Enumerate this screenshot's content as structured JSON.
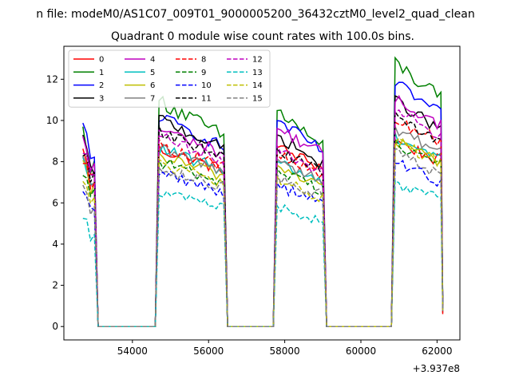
{
  "chart_data": {
    "type": "line",
    "suptitle": "n file: modeM0/AS1C07_009T01_9000005200_36432cztM0_level2_quad_clean",
    "title": "Quadrant 0 module wise count rates with 100.0s bins.",
    "xlabel": "",
    "ylabel": "",
    "x_offset_label": "+3.937e8",
    "xlim": [
      52200,
      62600
    ],
    "ylim": [
      -0.65,
      13.6
    ],
    "xticks": [
      54000,
      56000,
      58000,
      60000,
      62000
    ],
    "xtick_labels": [
      "54000",
      "56000",
      "58000",
      "60000",
      "62000"
    ],
    "yticks": [
      0,
      2,
      4,
      6,
      8,
      10,
      12
    ],
    "ytick_labels": [
      "0",
      "2",
      "4",
      "6",
      "8",
      "10",
      "12"
    ],
    "grid": false,
    "legend_placement": "top-left",
    "legend_columns": 4,
    "segments": [
      {
        "start": 52700,
        "end": 53000,
        "drop_end": 53100
      },
      {
        "rise_start": 54600,
        "start": 54700,
        "end": 56400,
        "drop_end": 56500
      },
      {
        "rise_start": 57700,
        "start": 57800,
        "end": 59000,
        "drop_end": 59100
      },
      {
        "rise_start": 60800,
        "start": 60900,
        "end": 62100,
        "drop_end": 62150
      }
    ],
    "series": [
      {
        "name": "0",
        "color": "#ff0000",
        "dash": "solid",
        "levels": [
          8.5,
          8.6,
          8.7,
          9.0
        ],
        "decay": 1.0,
        "noise": 0.3
      },
      {
        "name": "1",
        "color": "#008000",
        "dash": "solid",
        "levels": [
          9.5,
          11.0,
          10.5,
          12.8
        ],
        "decay": 1.8,
        "noise": 0.4
      },
      {
        "name": "2",
        "color": "#0000ff",
        "dash": "solid",
        "levels": [
          9.7,
          10.2,
          10.0,
          11.8
        ],
        "decay": 1.5,
        "noise": 0.3
      },
      {
        "name": "3",
        "color": "#000000",
        "dash": "solid",
        "levels": [
          9.1,
          10.1,
          9.3,
          11.0
        ],
        "decay": 1.5,
        "noise": 0.3
      },
      {
        "name": "4",
        "color": "#bf00bf",
        "dash": "solid",
        "levels": [
          9.0,
          9.6,
          9.6,
          11.0
        ],
        "decay": 1.2,
        "noise": 0.3
      },
      {
        "name": "5",
        "color": "#00bfbf",
        "dash": "solid",
        "levels": [
          8.0,
          8.6,
          8.0,
          9.2
        ],
        "decay": 1.0,
        "noise": 0.3
      },
      {
        "name": "6",
        "color": "#bfbf00",
        "dash": "solid",
        "levels": [
          7.8,
          8.3,
          7.8,
          9.0
        ],
        "decay": 1.0,
        "noise": 0.3
      },
      {
        "name": "7",
        "color": "#808080",
        "dash": "solid",
        "levels": [
          8.0,
          8.6,
          8.1,
          9.5
        ],
        "decay": 1.0,
        "noise": 0.3
      },
      {
        "name": "8",
        "color": "#ff0000",
        "dash": "dashed",
        "levels": [
          8.2,
          8.8,
          8.3,
          10.0
        ],
        "decay": 1.0,
        "noise": 0.3
      },
      {
        "name": "9",
        "color": "#008000",
        "dash": "dashed",
        "levels": [
          7.6,
          8.0,
          7.6,
          8.9
        ],
        "decay": 1.0,
        "noise": 0.3
      },
      {
        "name": "10",
        "color": "#0000ff",
        "dash": "dashed",
        "levels": [
          6.8,
          7.5,
          6.9,
          8.0
        ],
        "decay": 1.0,
        "noise": 0.3
      },
      {
        "name": "11",
        "color": "#000000",
        "dash": "dashed",
        "levels": [
          8.5,
          9.5,
          8.6,
          10.2
        ],
        "decay": 1.2,
        "noise": 0.3
      },
      {
        "name": "12",
        "color": "#bf00bf",
        "dash": "dashed",
        "levels": [
          8.6,
          9.2,
          8.7,
          10.5
        ],
        "decay": 1.2,
        "noise": 0.3
      },
      {
        "name": "13",
        "color": "#00bfbf",
        "dash": "dashed",
        "levels": [
          5.4,
          6.5,
          5.8,
          6.9
        ],
        "decay": 0.7,
        "noise": 0.25
      },
      {
        "name": "14",
        "color": "#bfbf00",
        "dash": "dashed",
        "levels": [
          7.2,
          7.9,
          7.2,
          9.0
        ],
        "decay": 1.0,
        "noise": 0.3
      },
      {
        "name": "15",
        "color": "#808080",
        "dash": "dashed",
        "levels": [
          7.0,
          7.7,
          7.3,
          8.4
        ],
        "decay": 1.0,
        "noise": 0.3
      }
    ]
  }
}
